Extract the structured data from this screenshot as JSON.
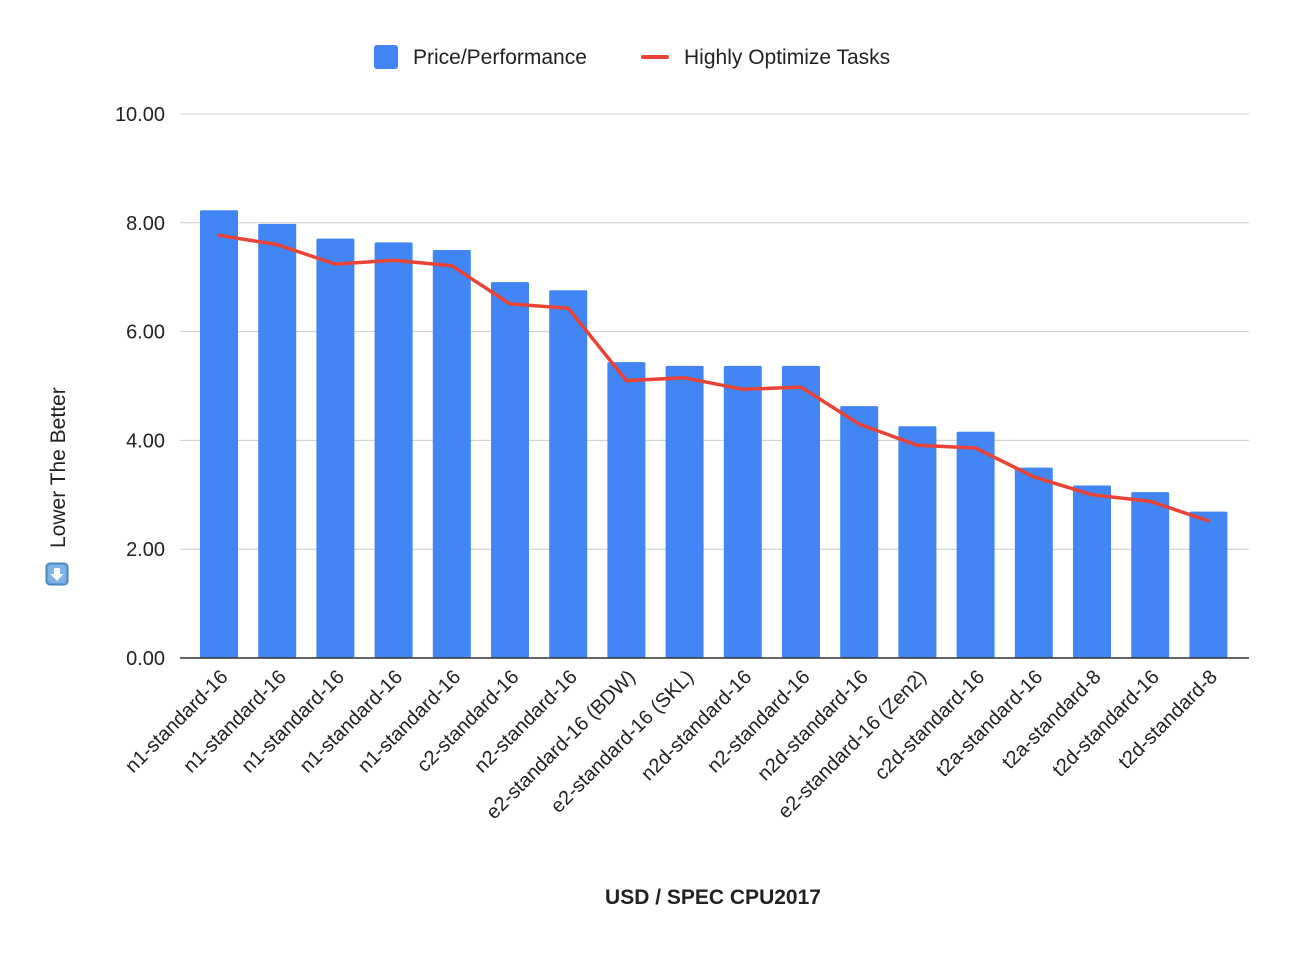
{
  "chart_data": {
    "type": "bar",
    "xlabel": "USD / SPEC CPU2017",
    "ylabel": "Lower The Better",
    "ylabel_icon": "down-arrow-button-icon",
    "ylim": [
      0,
      10
    ],
    "yticks": [
      "0.00",
      "2.00",
      "4.00",
      "6.00",
      "8.00",
      "10.00"
    ],
    "grid": true,
    "legend_position": "top",
    "categories": [
      "n1-standard-16",
      "n1-standard-16",
      "n1-standard-16",
      "n1-standard-16",
      "n1-standard-16",
      "c2-standard-16",
      "n2-standard-16",
      "e2-standard-16 (BDW)",
      "e2-standard-16 (SKL)",
      "n2d-standard-16",
      "n2-standard-16",
      "n2d-standard-16",
      "e2-standard-16 (Zen2)",
      "c2d-standard-16",
      "t2a-standard-16",
      "t2a-standard-8",
      "t2d-standard-16",
      "t2d-standard-8"
    ],
    "series": [
      {
        "name": "Price/Performance",
        "kind": "bar",
        "color": "#4285f4",
        "values": [
          8.23,
          7.98,
          7.71,
          7.64,
          7.5,
          6.91,
          6.76,
          5.44,
          5.37,
          5.37,
          5.37,
          4.63,
          4.26,
          4.16,
          3.5,
          3.17,
          3.05,
          2.69
        ]
      },
      {
        "name": "Highly Optimize Tasks",
        "kind": "line",
        "color": "#ea4335",
        "values": [
          7.77,
          7.6,
          7.24,
          7.31,
          7.21,
          6.51,
          6.43,
          5.1,
          5.15,
          4.94,
          4.98,
          4.3,
          3.91,
          3.86,
          3.33,
          3.0,
          2.88,
          2.52
        ]
      }
    ]
  }
}
